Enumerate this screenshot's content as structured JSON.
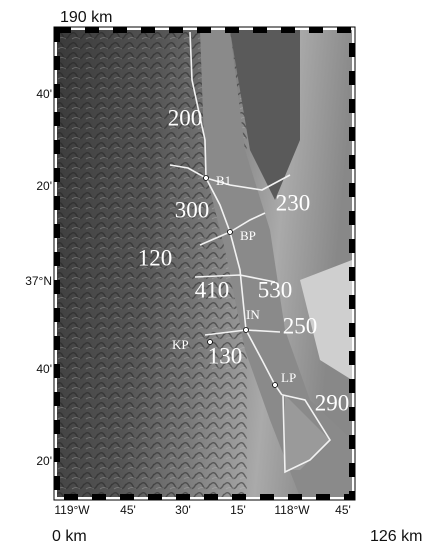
{
  "map": {
    "scale_top": "190 km",
    "scale_left": "0 km",
    "scale_right": "126 km",
    "lat_labels": [
      "40'",
      "20'",
      "37°N",
      "40'",
      "20'"
    ],
    "lon_labels": [
      "119°W",
      "45'",
      "30'",
      "15'",
      "118°W",
      "45'"
    ],
    "stations": [
      "B1",
      "BP",
      "IN",
      "KP",
      "LP"
    ],
    "depth_labels": [
      "200",
      "300",
      "230",
      "120",
      "410",
      "530",
      "250",
      "130",
      "290"
    ]
  }
}
